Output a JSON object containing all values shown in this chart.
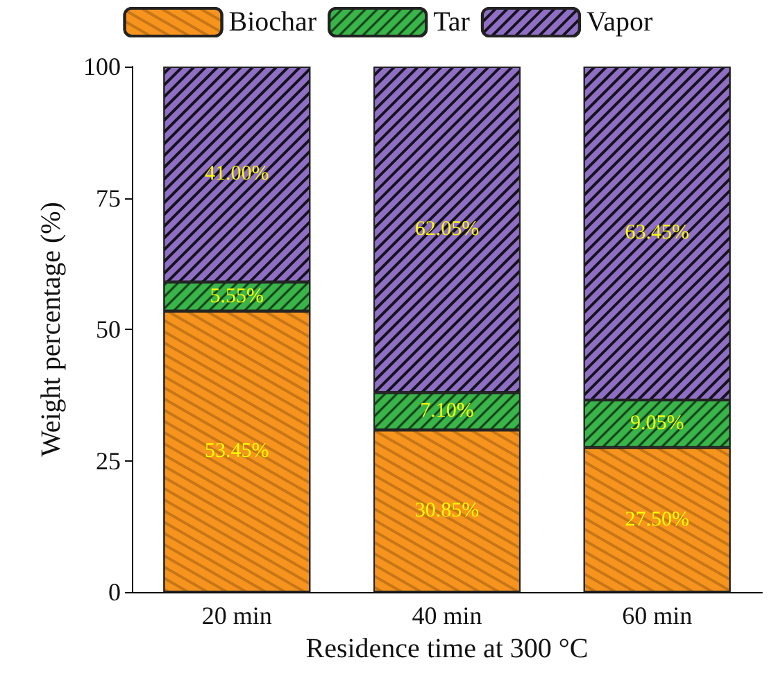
{
  "chart_data": {
    "type": "bar",
    "stacked": true,
    "xlabel": "Residence time at 300 °C",
    "ylabel": "Weight percentage (%)",
    "categories": [
      "20 min",
      "40 min",
      "60 min"
    ],
    "series": [
      {
        "name": "Biochar",
        "color": "#f7941d",
        "values": [
          53.45,
          30.85,
          27.5
        ],
        "value_labels": [
          "53.45%",
          "30.85%",
          "27.50%"
        ]
      },
      {
        "name": "Tar",
        "color": "#39b54a",
        "values": [
          5.55,
          7.1,
          9.05
        ],
        "value_labels": [
          "5.55%",
          "7.10%",
          "9.05%"
        ]
      },
      {
        "name": "Vapor",
        "color": "#8e6fc4",
        "values": [
          41.0,
          62.05,
          63.45
        ],
        "value_labels": [
          "41.00%",
          "62.05%",
          "63.45%"
        ]
      }
    ],
    "ylim": [
      0,
      100
    ],
    "yticks": [
      0,
      25,
      50,
      75,
      100
    ],
    "grid": false,
    "legend": "top"
  }
}
